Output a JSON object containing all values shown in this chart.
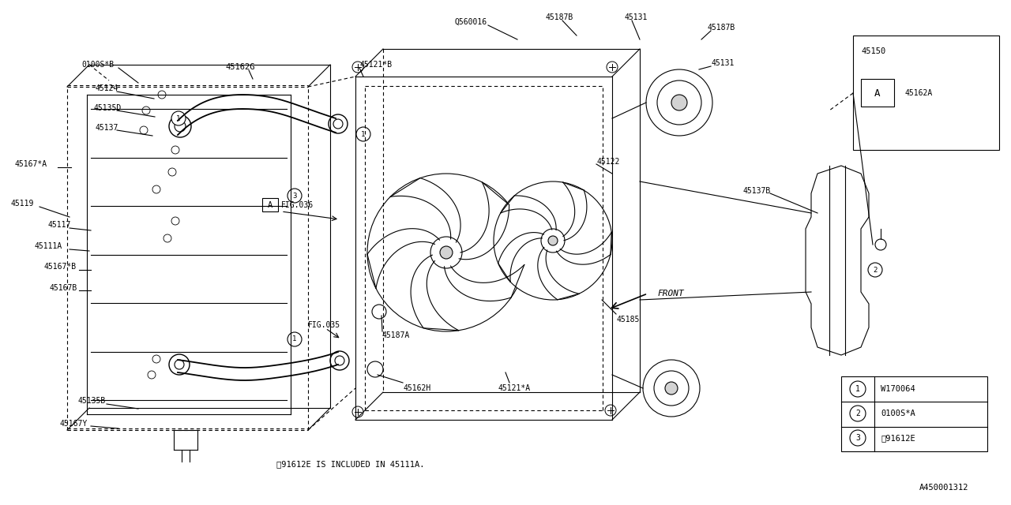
{
  "bg_color": "#ffffff",
  "line_color": "#000000",
  "diagram_id": "A450001312",
  "note": "※91612E IS INCLUDED IN 45111A.",
  "legend": [
    {
      "num": "1",
      "code": "W170064"
    },
    {
      "num": "2",
      "code": "0100S*A"
    },
    {
      "num": "3",
      "code": "※91612E"
    }
  ]
}
